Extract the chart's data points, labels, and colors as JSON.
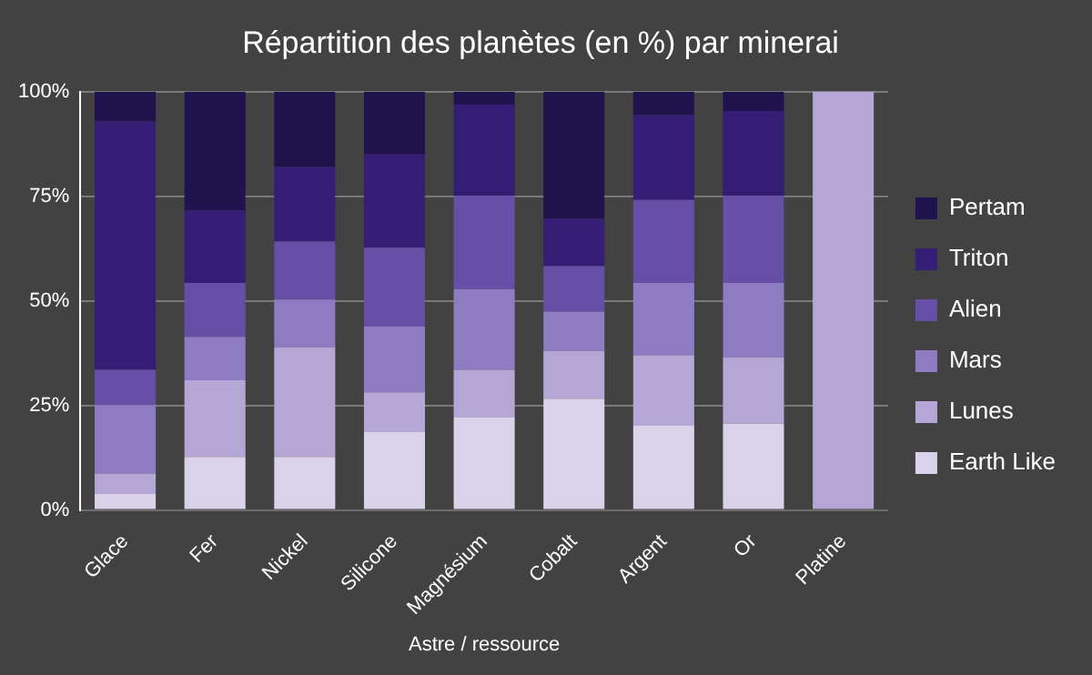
{
  "chart_data": {
    "type": "bar",
    "title": "Répartition des planètes (en %) par minerai",
    "xlabel": "Astre / ressource",
    "categories": [
      "Glace",
      "Fer",
      "Nickel",
      "Silicone",
      "Magnésium",
      "Cobalt",
      "Argent",
      "Or",
      "Platine"
    ],
    "stacked": true,
    "ylim": [
      0,
      100
    ],
    "yticks": [
      {
        "value": 0,
        "label": "0%"
      },
      {
        "value": 25,
        "label": "25%"
      },
      {
        "value": 50,
        "label": "50%"
      },
      {
        "value": 75,
        "label": "75%"
      },
      {
        "value": 100,
        "label": "100%"
      }
    ],
    "grid": "y",
    "legend": "right",
    "series": [
      {
        "name": "Earth Like",
        "color": "#d9d2e9",
        "values": [
          3.8,
          12.7,
          12.7,
          18.6,
          22.1,
          26.6,
          20.1,
          20.6,
          0
        ]
      },
      {
        "name": "Lunes",
        "color": "#b4a7d6",
        "values": [
          4.9,
          18.3,
          26.2,
          9.5,
          11.4,
          11.4,
          16.9,
          15.9,
          100
        ]
      },
      {
        "name": "Mars",
        "color": "#8e7cc3",
        "values": [
          16.4,
          10.4,
          11.4,
          15.8,
          19.3,
          9.4,
          17.3,
          17.8,
          0
        ]
      },
      {
        "name": "Alien",
        "color": "#674ea7",
        "values": [
          8.4,
          12.9,
          13.9,
          18.8,
          22.3,
          10.9,
          19.8,
          20.8,
          0
        ]
      },
      {
        "name": "Triton",
        "color": "#351c75",
        "values": [
          59.4,
          17.3,
          17.8,
          22.3,
          21.8,
          11.3,
          20.3,
          20.3,
          0
        ]
      },
      {
        "name": "Pertam",
        "color": "#20124d",
        "values": [
          7.1,
          28.4,
          18.0,
          15.0,
          3.1,
          30.4,
          5.6,
          4.6,
          0
        ]
      }
    ]
  }
}
